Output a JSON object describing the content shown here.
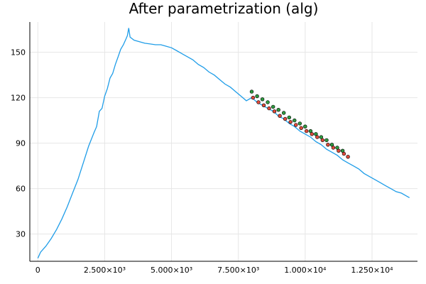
{
  "chart_data": {
    "type": "line",
    "title": "After parametrization (alg)",
    "xlabel": "",
    "ylabel": "",
    "xlim": [
      -300,
      14200
    ],
    "ylim": [
      12,
      170
    ],
    "x_ticks": [
      {
        "value": 0,
        "label": "0"
      },
      {
        "value": 2500,
        "label": "2.500×10³"
      },
      {
        "value": 5000,
        "label": "5.000×10³"
      },
      {
        "value": 7500,
        "label": "7.500×10³"
      },
      {
        "value": 10000,
        "label": "1.000×10⁴"
      },
      {
        "value": 12500,
        "label": "1.250×10⁴"
      }
    ],
    "y_ticks": [
      {
        "value": 30,
        "label": "30"
      },
      {
        "value": 60,
        "label": "60"
      },
      {
        "value": 90,
        "label": "90"
      },
      {
        "value": 120,
        "label": "120"
      },
      {
        "value": 150,
        "label": "150"
      }
    ],
    "grid": true,
    "legend": "none",
    "series": [
      {
        "kind": "line",
        "color": "#1f9de8",
        "x": [
          0,
          100,
          300,
          500,
          700,
          900,
          1100,
          1300,
          1500,
          1700,
          1900,
          2100,
          2200,
          2300,
          2400,
          2500,
          2600,
          2700,
          2800,
          2900,
          3000,
          3100,
          3200,
          3300,
          3350,
          3400,
          3450,
          3600,
          3800,
          4000,
          4200,
          4400,
          4600,
          4800,
          5000,
          5200,
          5400,
          5600,
          5800,
          6000,
          6200,
          6400,
          6600,
          6800,
          7000,
          7200,
          7400,
          7600,
          7800,
          8000,
          8200,
          8400,
          8600,
          8800,
          9000,
          9200,
          9400,
          9600,
          9800,
          10000,
          10200,
          10400,
          10600,
          10800,
          11000,
          11200,
          11400,
          11600,
          11800,
          12000,
          12200,
          12400,
          12600,
          12800,
          13000,
          13200,
          13400,
          13600,
          13800,
          13900
        ],
        "y": [
          14,
          18,
          22,
          27,
          33,
          40,
          48,
          57,
          66,
          77,
          88,
          97,
          101,
          111,
          113,
          121,
          126,
          133,
          136,
          142,
          147,
          152,
          155,
          159,
          161,
          166,
          160,
          158,
          157,
          156,
          155.5,
          155,
          155,
          154,
          153,
          151,
          149,
          147,
          145,
          142,
          140,
          137,
          135,
          132,
          129,
          127,
          124,
          121,
          118,
          120,
          117,
          115,
          113,
          111,
          108,
          106,
          103,
          101,
          98,
          96,
          94,
          91,
          89,
          86,
          84,
          82,
          79,
          77,
          75,
          73,
          70,
          68,
          66,
          64,
          62,
          60,
          58,
          57,
          55,
          54
        ]
      },
      {
        "kind": "scatter",
        "color": "#2e9b40",
        "x": [
          8000,
          8200,
          8400,
          8600,
          8800,
          9000,
          9200,
          9400,
          9600,
          9800,
          10000,
          10200,
          10400,
          10600,
          10800,
          11000,
          11200,
          11400
        ],
        "y": [
          124,
          121,
          119,
          117,
          114,
          112,
          110,
          107,
          105,
          103,
          101,
          98,
          96,
          94,
          92,
          89,
          87,
          85
        ]
      },
      {
        "kind": "scatter",
        "color": "#e04a3b",
        "x": [
          8050,
          8250,
          8450,
          8650,
          8850,
          9050,
          9250,
          9450,
          9650,
          9850,
          10050,
          10250,
          10450,
          10650,
          10850,
          11050,
          11250,
          11450,
          11600
        ],
        "y": [
          120,
          117,
          115,
          113,
          111,
          108,
          106,
          104,
          102,
          100,
          98,
          96,
          94,
          92,
          89,
          87,
          85,
          83,
          81
        ]
      }
    ]
  }
}
